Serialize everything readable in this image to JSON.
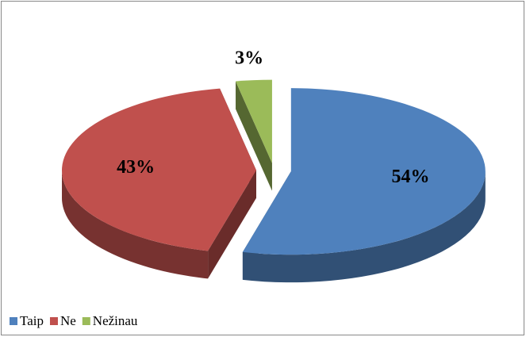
{
  "chart_data": {
    "type": "pie3d",
    "categories": [
      "Taip",
      "Ne",
      "Nežinau"
    ],
    "values": [
      54,
      43,
      3
    ],
    "value_labels": [
      "54%",
      "43%",
      "3%"
    ],
    "colors": [
      "#4f81bd",
      "#c0504d",
      "#9bbb59"
    ],
    "legend": "bottom-left"
  }
}
